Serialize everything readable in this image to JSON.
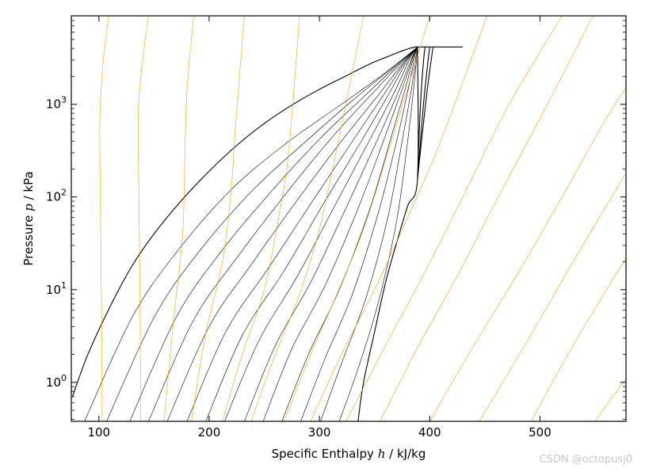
{
  "chart_data": {
    "type": "line",
    "title": "",
    "xlabel": {
      "before": "Specific Enthalpy ",
      "symbol": "h",
      "after": " / kJ/kg"
    },
    "ylabel": {
      "before": "Pressure ",
      "symbol": "p",
      "after": " / kPa"
    },
    "xlim": [
      75,
      578
    ],
    "ylim": [
      0.38,
      9000
    ],
    "yscale": "log",
    "xticks": [
      100,
      200,
      300,
      400,
      500
    ],
    "yticks": [
      {
        "value": 1,
        "label": "10",
        "exp": "0"
      },
      {
        "value": 10,
        "label": "10",
        "exp": "1"
      },
      {
        "value": 100,
        "label": "10",
        "exp": "2"
      },
      {
        "value": 1000,
        "label": "10",
        "exp": "3"
      }
    ],
    "grid": false,
    "colors": {
      "dome": "#000000",
      "isotherm": "#ff9d00"
    },
    "series": [
      {
        "kind": "dome",
        "points": [
          [
            76,
            0.7
          ],
          [
            90,
            2
          ],
          [
            110,
            6.5
          ],
          [
            130,
            18
          ],
          [
            150,
            40
          ],
          [
            175,
            92
          ],
          [
            200,
            190
          ],
          [
            225,
            360
          ],
          [
            250,
            620
          ],
          [
            275,
            980
          ],
          [
            300,
            1450
          ],
          [
            325,
            2050
          ],
          [
            345,
            2700
          ],
          [
            360,
            3200
          ],
          [
            372,
            3650
          ],
          [
            380,
            3950
          ],
          [
            387,
            4150
          ],
          [
            389,
            4150
          ]
        ]
      },
      {
        "kind": "dome",
        "points": [
          [
            335,
            0.38
          ],
          [
            340,
            1
          ],
          [
            350,
            3.5
          ],
          [
            360,
            12
          ],
          [
            370,
            32
          ],
          [
            380,
            80
          ],
          [
            389,
            160
          ],
          [
            389,
            4150
          ]
        ]
      },
      {
        "kind": "line",
        "points": [
          [
            389,
            4150
          ],
          [
            430,
            4150
          ]
        ]
      },
      {
        "kind": "dome",
        "points": [
          [
            389,
            160
          ],
          [
            391,
            700
          ],
          [
            393,
            1800
          ],
          [
            395,
            3500
          ],
          [
            396,
            4150
          ]
        ]
      },
      {
        "kind": "dome",
        "points": [
          [
            389,
            160
          ],
          [
            394,
            900
          ],
          [
            398,
            2600
          ],
          [
            400,
            4150
          ]
        ]
      },
      {
        "kind": "dome",
        "points": [
          [
            389,
            160
          ],
          [
            397,
            1200
          ],
          [
            403,
            4150
          ]
        ]
      },
      {
        "kind": "quality",
        "points": [
          [
            87,
            0.38
          ],
          [
            130,
            5
          ],
          [
            170,
            25
          ],
          [
            220,
            120
          ],
          [
            270,
            380
          ],
          [
            320,
            1000
          ],
          [
            360,
            2200
          ],
          [
            389,
            4150
          ]
        ]
      },
      {
        "kind": "quality",
        "points": [
          [
            107,
            0.38
          ],
          [
            150,
            5
          ],
          [
            190,
            25
          ],
          [
            240,
            120
          ],
          [
            290,
            420
          ],
          [
            330,
            1100
          ],
          [
            365,
            2400
          ],
          [
            389,
            4150
          ]
        ]
      },
      {
        "kind": "quality",
        "points": [
          [
            128,
            0.38
          ],
          [
            170,
            5
          ],
          [
            210,
            25
          ],
          [
            255,
            110
          ],
          [
            300,
            420
          ],
          [
            340,
            1200
          ],
          [
            370,
            2600
          ],
          [
            389,
            4150
          ]
        ]
      },
      {
        "kind": "quality",
        "points": [
          [
            145,
            0.38
          ],
          [
            185,
            4.5
          ],
          [
            225,
            22
          ],
          [
            270,
            110
          ],
          [
            310,
            420
          ],
          [
            345,
            1200
          ],
          [
            373,
            2700
          ],
          [
            389,
            4150
          ]
        ]
      },
      {
        "kind": "quality",
        "points": [
          [
            162,
            0.38
          ],
          [
            200,
            4
          ],
          [
            240,
            20
          ],
          [
            282,
            100
          ],
          [
            320,
            400
          ],
          [
            352,
            1200
          ],
          [
            376,
            2800
          ],
          [
            389,
            4150
          ]
        ]
      },
      {
        "kind": "quality",
        "points": [
          [
            180,
            0.38
          ],
          [
            215,
            3.5
          ],
          [
            255,
            18
          ],
          [
            295,
            95
          ],
          [
            330,
            400
          ],
          [
            358,
            1250
          ],
          [
            378,
            2900
          ],
          [
            389,
            4150
          ]
        ]
      },
      {
        "kind": "quality",
        "points": [
          [
            197,
            0.38
          ],
          [
            230,
            3.2
          ],
          [
            268,
            16
          ],
          [
            305,
            90
          ],
          [
            338,
            400
          ],
          [
            363,
            1300
          ],
          [
            380,
            3000
          ],
          [
            389,
            4150
          ]
        ]
      },
      {
        "kind": "quality",
        "points": [
          [
            214,
            0.38
          ],
          [
            245,
            2.8
          ],
          [
            280,
            14
          ],
          [
            315,
            85
          ],
          [
            345,
            400
          ],
          [
            368,
            1350
          ],
          [
            382,
            3100
          ],
          [
            389,
            4150
          ]
        ]
      },
      {
        "kind": "quality",
        "points": [
          [
            232,
            0.38
          ],
          [
            260,
            2.5
          ],
          [
            292,
            12
          ],
          [
            325,
            80
          ],
          [
            352,
            400
          ],
          [
            372,
            1400
          ],
          [
            384,
            3200
          ],
          [
            389,
            4150
          ]
        ]
      },
      {
        "kind": "quality",
        "points": [
          [
            249,
            0.38
          ],
          [
            275,
            2.3
          ],
          [
            305,
            11
          ],
          [
            335,
            75
          ],
          [
            358,
            400
          ],
          [
            375,
            1450
          ],
          [
            385,
            3300
          ],
          [
            389,
            4150
          ]
        ]
      },
      {
        "kind": "quality",
        "points": [
          [
            266,
            0.38
          ],
          [
            290,
            2
          ],
          [
            318,
            10
          ],
          [
            345,
            70
          ],
          [
            364,
            400
          ],
          [
            378,
            1500
          ],
          [
            386,
            3400
          ],
          [
            389,
            4150
          ]
        ]
      },
      {
        "kind": "quality",
        "points": [
          [
            283,
            0.38
          ],
          [
            305,
            1.8
          ],
          [
            330,
            9
          ],
          [
            353,
            65
          ],
          [
            370,
            400
          ],
          [
            381,
            1550
          ],
          [
            387,
            3500
          ],
          [
            389,
            4150
          ]
        ]
      },
      {
        "kind": "quality",
        "points": [
          [
            301,
            0.38
          ],
          [
            320,
            1.6
          ],
          [
            342,
            8
          ],
          [
            362,
            60
          ],
          [
            375,
            400
          ],
          [
            384,
            1600
          ],
          [
            388,
            3600
          ],
          [
            389,
            4150
          ]
        ]
      },
      {
        "kind": "quality",
        "points": [
          [
            318,
            0.38
          ],
          [
            335,
            1.4
          ],
          [
            353,
            7
          ],
          [
            370,
            55
          ],
          [
            380,
            400
          ],
          [
            386,
            1700
          ],
          [
            389,
            4150
          ]
        ]
      },
      {
        "kind": "isotherm",
        "points": [
          [
            103,
            0.38
          ],
          [
            102,
            20
          ],
          [
            101,
            200
          ],
          [
            101,
            800
          ],
          [
            104,
            3000
          ],
          [
            109,
            9000
          ]
        ]
      },
      {
        "kind": "isotherm",
        "points": [
          [
            138,
            0.38
          ],
          [
            137,
            20
          ],
          [
            136,
            200
          ],
          [
            136,
            1000
          ],
          [
            141,
            4000
          ],
          [
            145,
            9000
          ]
        ]
      },
      {
        "kind": "isotherm",
        "points": [
          [
            159,
            0.38
          ],
          [
            168,
            5
          ],
          [
            176,
            40
          ],
          [
            178,
            300
          ],
          [
            180,
            1500
          ],
          [
            186,
            9000
          ]
        ]
      },
      {
        "kind": "isotherm",
        "points": [
          [
            184,
            0.38
          ],
          [
            196,
            3
          ],
          [
            212,
            20
          ],
          [
            220,
            120
          ],
          [
            224,
            600
          ],
          [
            232,
            9000
          ]
        ]
      },
      {
        "kind": "isotherm",
        "points": [
          [
            212,
            0.38
          ],
          [
            230,
            2
          ],
          [
            250,
            10
          ],
          [
            263,
            60
          ],
          [
            272,
            300
          ],
          [
            282,
            9000
          ]
        ]
      },
      {
        "kind": "isotherm",
        "points": [
          [
            238,
            0.38
          ],
          [
            260,
            2
          ],
          [
            282,
            9
          ],
          [
            300,
            45
          ],
          [
            315,
            300
          ],
          [
            340,
            9000
          ]
        ]
      },
      {
        "kind": "isotherm",
        "points": [
          [
            268,
            0.38
          ],
          [
            292,
            2
          ],
          [
            316,
            9
          ],
          [
            340,
            45
          ],
          [
            362,
            300
          ],
          [
            400,
            9000
          ]
        ]
      },
      {
        "kind": "isotherm",
        "points": [
          [
            292,
            0.38
          ],
          [
            320,
            2
          ],
          [
            350,
            10
          ],
          [
            380,
            60
          ],
          [
            410,
            400
          ],
          [
            452,
            9000
          ]
        ]
      },
      {
        "kind": "isotherm",
        "points": [
          [
            324,
            0.38
          ],
          [
            360,
            2.5
          ],
          [
            395,
            15
          ],
          [
            430,
            100
          ],
          [
            470,
            900
          ],
          [
            520,
            9000
          ]
        ]
      },
      {
        "kind": "isotherm",
        "points": [
          [
            355,
            0.38
          ],
          [
            390,
            2.5
          ],
          [
            425,
            14
          ],
          [
            460,
            90
          ],
          [
            500,
            700
          ],
          [
            548,
            9000
          ]
        ]
      },
      {
        "kind": "isotherm",
        "points": [
          [
            400,
            0.38
          ],
          [
            440,
            2.5
          ],
          [
            480,
            15
          ],
          [
            520,
            100
          ],
          [
            560,
            700
          ],
          [
            578,
            1500
          ]
        ]
      },
      {
        "kind": "isotherm",
        "points": [
          [
            445,
            0.38
          ],
          [
            490,
            3
          ],
          [
            530,
            20
          ],
          [
            578,
            180
          ]
        ]
      },
      {
        "kind": "isotherm",
        "points": [
          [
            492,
            0.38
          ],
          [
            530,
            2.5
          ],
          [
            578,
            22
          ]
        ]
      },
      {
        "kind": "isotherm",
        "points": [
          [
            550,
            0.38
          ],
          [
            578,
            1.1
          ]
        ]
      }
    ]
  },
  "watermark": "CSDN @octopusj0"
}
